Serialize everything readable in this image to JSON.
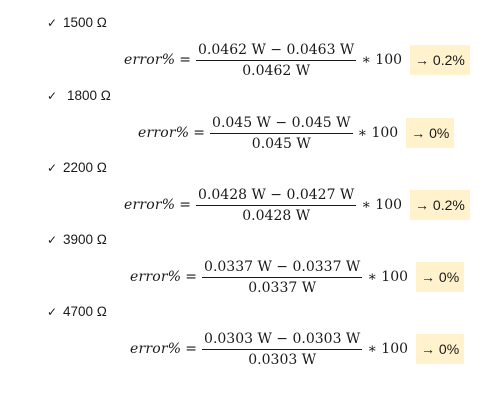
{
  "items": [
    {
      "resistance": "1500 Ω",
      "lhs": "error%",
      "equals": "=",
      "numerator": "0.0462 W − 0.0463 W",
      "denominator": "0.0462 W",
      "multiplier": "∗ 100",
      "result": "→ 0.2%"
    },
    {
      "resistance": "1800 Ω",
      "lhs": "error%",
      "equals": "=",
      "numerator": "0.045 W − 0.045 W",
      "denominator": "0.045 W",
      "multiplier": "∗ 100",
      "result": "→ 0%"
    },
    {
      "resistance": "2200 Ω",
      "lhs": "error%",
      "equals": "=",
      "numerator": "0.0428 W − 0.0427 W",
      "denominator": "0.0428 W",
      "multiplier": "∗ 100",
      "result": "→ 0.2%"
    },
    {
      "resistance": "3900 Ω",
      "lhs": "error%",
      "equals": "=",
      "numerator": "0.0337 W − 0.0337 W",
      "denominator": "0.0337 W",
      "multiplier": "∗ 100",
      "result": "→ 0%"
    },
    {
      "resistance": "4700 Ω",
      "lhs": "error%",
      "equals": "=",
      "numerator": "0.0303 W − 0.0303 W",
      "denominator": "0.0303 W",
      "multiplier": "∗ 100",
      "result": "→ 0%"
    }
  ],
  "check_glyph": "✓",
  "highlight_color": "#fff2cc"
}
